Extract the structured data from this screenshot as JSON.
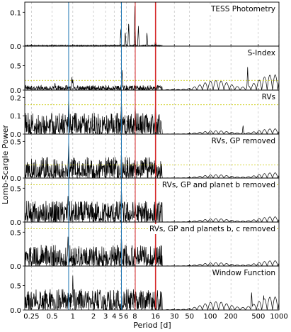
{
  "chart_data": {
    "type": "line",
    "xlabel": "Period [d]",
    "ylabel": "Lomb-Scargle Power",
    "x_scale": "log",
    "xlim": [
      0.2,
      1000
    ],
    "x_ticks": [
      0.25,
      0.5,
      1,
      2,
      3,
      4,
      5,
      6,
      8,
      16,
      30,
      50,
      100,
      200,
      500,
      1000
    ],
    "x_tick_labels": [
      "0.25",
      "0.5",
      "1",
      "2",
      "3",
      "4",
      "5",
      "6",
      "8",
      "16",
      "30",
      "50",
      "100",
      "200",
      "500",
      "1000"
    ],
    "vertical_markers": [
      {
        "period": 0.87,
        "color": "#1f77b4"
      },
      {
        "period": 5.1,
        "color": "#1f77b4"
      },
      {
        "period": 8.1,
        "color": "#d62728"
      },
      {
        "period": 16.0,
        "color": "#d62728"
      }
    ],
    "grid": "vertical dashed at x ticks",
    "panels": [
      {
        "title": "TESS Photometry",
        "ylim": [
          0,
          0.13
        ],
        "yticks": [
          0.0,
          0.1
        ],
        "ytick_labels": [
          "0.0",
          "0.1"
        ],
        "fap": null,
        "xrange": [
          0.2,
          20
        ],
        "peaks": [
          [
            5.0,
            0.05
          ],
          [
            5.8,
            0.04
          ],
          [
            6.5,
            0.07
          ],
          [
            8.0,
            0.12
          ],
          [
            9.0,
            0.06
          ],
          [
            12.0,
            0.04
          ],
          [
            16.0,
            0.02
          ]
        ]
      },
      {
        "title": "S-Index",
        "ylim": [
          0,
          0.9
        ],
        "yticks": [
          0.0,
          0.5
        ],
        "ytick_labels": [
          "0.0",
          "0.5"
        ],
        "fap": 0.2,
        "xrange": [
          0.2,
          1000
        ],
        "peaks": [
          [
            0.55,
            0.15
          ],
          [
            0.97,
            0.28
          ],
          [
            1.0,
            0.22
          ],
          [
            5.2,
            0.45
          ],
          [
            350,
            0.48
          ]
        ]
      },
      {
        "title": "RVs",
        "ylim": [
          0,
          0.24
        ],
        "yticks": [
          0.0,
          0.1,
          0.2
        ],
        "ytick_labels": [
          "0.0",
          "0.1",
          "0.2"
        ],
        "fap": 0.16,
        "xrange": [
          0.2,
          1000
        ],
        "peaks": [
          [
            0.87,
            0.21
          ],
          [
            5.1,
            0.2
          ],
          [
            8.1,
            0.17
          ],
          [
            16.0,
            0.22
          ],
          [
            300,
            0.05
          ]
        ]
      },
      {
        "title": "RVs, GP removed",
        "ylim": [
          0,
          0.6
        ],
        "yticks": [
          0.0,
          0.5
        ],
        "ytick_labels": [
          "0.0",
          "0.5"
        ],
        "fap": 0.18,
        "xrange": [
          0.2,
          1000
        ],
        "peaks": [
          [
            0.87,
            0.55
          ],
          [
            5.1,
            0.38
          ],
          [
            8.1,
            0.22
          ],
          [
            16.0,
            0.1
          ]
        ]
      },
      {
        "title": "RVs, GP and planet b removed",
        "ylim": [
          0,
          0.65
        ],
        "yticks": [
          0.0,
          0.5
        ],
        "ytick_labels": [
          "0.0",
          "0.5"
        ],
        "fap": 0.55,
        "xrange": [
          0.2,
          1000
        ],
        "peaks": [
          [
            0.85,
            0.4
          ],
          [
            5.1,
            0.55
          ],
          [
            8.1,
            0.35
          ]
        ]
      },
      {
        "title": "RVs, GP and planets b, c removed",
        "ylim": [
          0,
          0.65
        ],
        "yticks": [
          0.0,
          0.5
        ],
        "ytick_labels": [
          "0.0",
          "0.5"
        ],
        "fap": 0.55,
        "xrange": [
          0.2,
          1000
        ],
        "peaks": [
          [
            0.85,
            0.45
          ],
          [
            5.1,
            0.5
          ],
          [
            8.1,
            0.35
          ]
        ]
      },
      {
        "title": "Window Function",
        "ylim": [
          0,
          0.9
        ],
        "yticks": [
          0.0,
          0.5
        ],
        "ytick_labels": [
          "0.0",
          "0.5"
        ],
        "fap": null,
        "xrange": [
          0.2,
          1000
        ],
        "peaks": [
          [
            0.5,
            0.35
          ],
          [
            1.0,
            0.72
          ],
          [
            400,
            0.38
          ],
          [
            600,
            0.3
          ]
        ]
      }
    ]
  },
  "colors": {
    "fap_line": "#c8c800",
    "grid": "#b4b4b4",
    "signal": "#000000"
  }
}
